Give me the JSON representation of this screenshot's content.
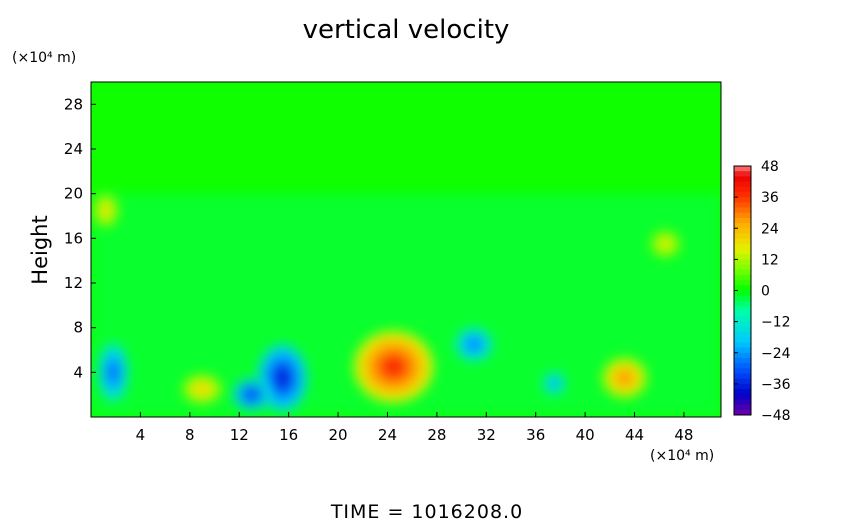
{
  "chart_data": {
    "type": "heatmap",
    "title": "vertical velocity",
    "ylabel": "Height",
    "xunit": "(×10⁴ m)",
    "yunit": "(×10⁴ m)",
    "footer": "TIME  =  1016208.0",
    "xlim": [
      0,
      51
    ],
    "ylim": [
      0,
      30
    ],
    "xticks": [
      4,
      8,
      12,
      16,
      20,
      24,
      28,
      32,
      36,
      40,
      44,
      48
    ],
    "yticks": [
      4,
      8,
      12,
      16,
      20,
      24,
      28
    ],
    "colorbar": {
      "min": -48,
      "max": 48,
      "ticks": [
        48,
        36,
        24,
        12,
        0,
        -12,
        -24,
        -36,
        -48
      ],
      "tick_labels": [
        "48",
        "36",
        "24",
        "12",
        "0",
        "−12",
        "−24",
        "−36",
        "−48"
      ]
    },
    "background_value": 1,
    "features": [
      {
        "label": "updraft",
        "x": 24.5,
        "y": 4.5,
        "value": 40,
        "rx": 3.2,
        "ry": 3.2
      },
      {
        "label": "downdraft",
        "x": 15.5,
        "y": 3.5,
        "value": -40,
        "rx": 2.0,
        "ry": 3.0
      },
      {
        "label": "downdraft",
        "x": 13.0,
        "y": 2.0,
        "value": -38,
        "rx": 1.5,
        "ry": 1.4
      },
      {
        "label": "downdraft",
        "x": 1.8,
        "y": 4.0,
        "value": -32,
        "rx": 1.2,
        "ry": 2.6
      },
      {
        "label": "downdraft",
        "x": 31.0,
        "y": 6.5,
        "value": -30,
        "rx": 1.5,
        "ry": 1.5
      },
      {
        "label": "updraft",
        "x": 43.2,
        "y": 3.5,
        "value": 30,
        "rx": 1.8,
        "ry": 1.8
      },
      {
        "label": "updraft",
        "x": 9.0,
        "y": 2.5,
        "value": 22,
        "rx": 1.6,
        "ry": 1.3
      },
      {
        "label": "downdraft",
        "x": 37.5,
        "y": 3.0,
        "value": -26,
        "rx": 0.9,
        "ry": 1.0
      },
      {
        "label": "updraft",
        "x": 1.2,
        "y": 18.5,
        "value": 20,
        "rx": 1.0,
        "ry": 1.5
      },
      {
        "label": "updraft",
        "x": 46.5,
        "y": 15.5,
        "value": 18,
        "rx": 1.2,
        "ry": 1.2
      }
    ],
    "legend": "right colorbar",
    "grid": false
  }
}
